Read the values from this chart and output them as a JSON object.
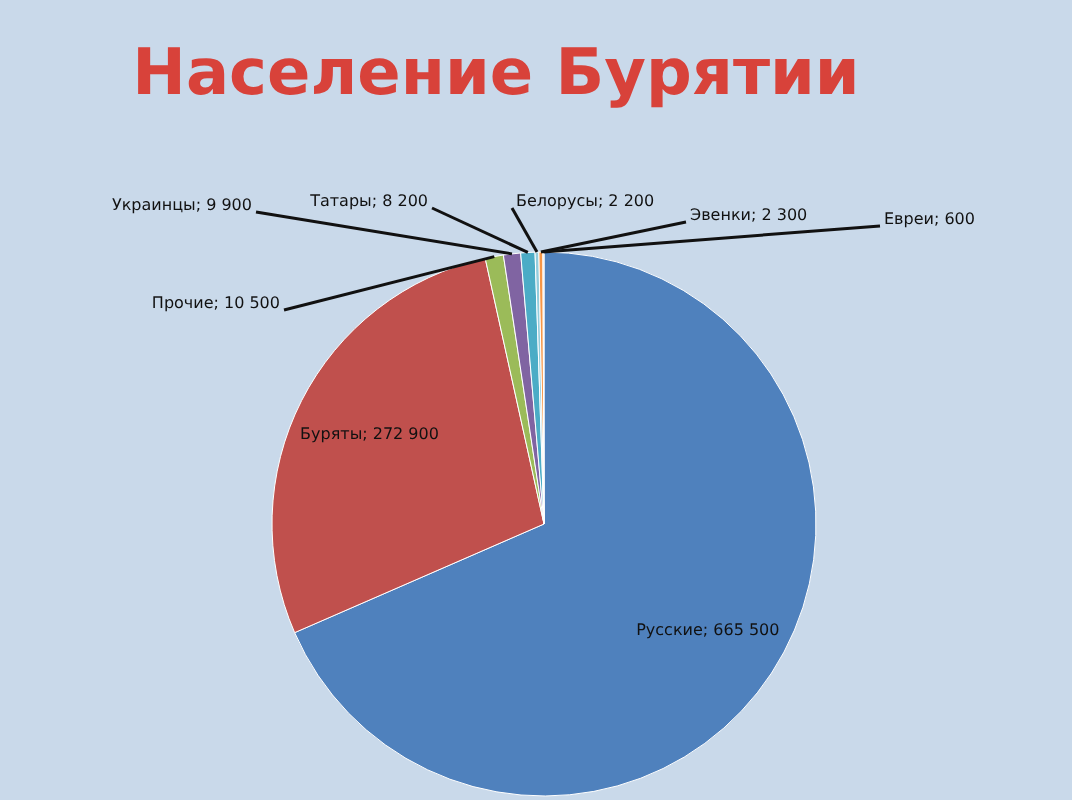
{
  "chart_data": {
    "type": "pie",
    "title": "Население Бурятии",
    "categories": [
      "Русские",
      "Буряты",
      "Прочие",
      "Украинцы",
      "Татары",
      "Белорусы",
      "Эвенки",
      "Евреи"
    ],
    "values": [
      665500,
      272900,
      10500,
      9900,
      8200,
      2200,
      2300,
      600
    ],
    "value_labels": [
      "665 500",
      "272 900",
      "10 500",
      "9 900",
      "8 200",
      "2 200",
      "2 300",
      "600"
    ],
    "colors": [
      "#4f81bd",
      "#c0504d",
      "#9bbb59",
      "#8064a2",
      "#4bacc6",
      "#93cddd",
      "#f79646",
      "#d9d9d9"
    ]
  }
}
